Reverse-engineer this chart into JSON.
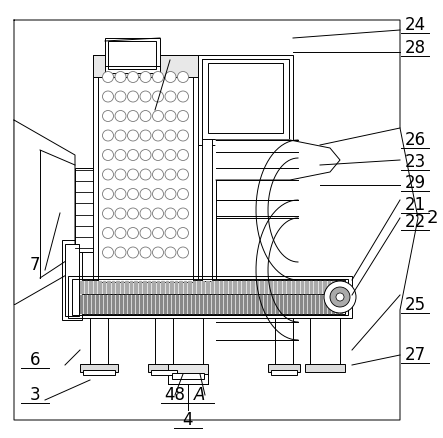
{
  "fig_width": 4.43,
  "fig_height": 4.38,
  "dpi": 100,
  "bg_color": "#ffffff",
  "lc": "#000000",
  "hatch_dark": "#888888",
  "hatch_light": "#bbbbbb"
}
